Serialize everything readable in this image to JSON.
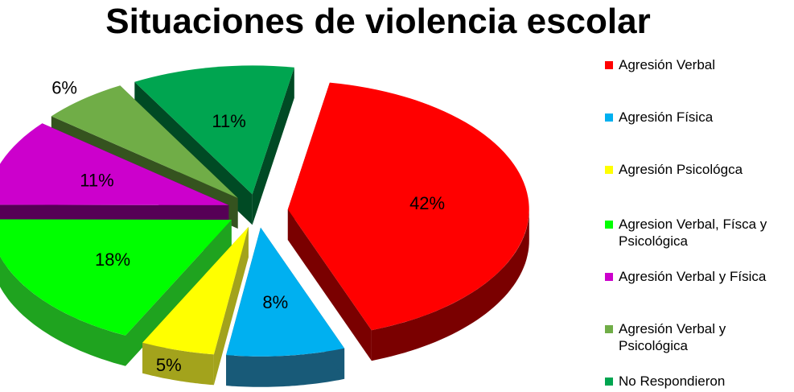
{
  "chart_data": {
    "type": "pie",
    "title": "Situaciones de violencia escolar",
    "legend_position": "right",
    "slices": [
      {
        "label": "Agresión Verbal",
        "value": 42,
        "display": "42%",
        "color": "#ff0000",
        "side": "#7a0000"
      },
      {
        "label": "Agresión Física",
        "value": 8,
        "display": "8%",
        "color": "#00b0f0",
        "side": "#185a78"
      },
      {
        "label": "Agresión Psicológca",
        "value": 5,
        "display": "5%",
        "color": "#ffff00",
        "side": "#a3a31c"
      },
      {
        "label": "Agresion Verbal, Físca y  Psicológica",
        "value": 18,
        "display": "18%",
        "color": "#00ff00",
        "side": "#1fa31f"
      },
      {
        "label": "Agresión Verbal y Física",
        "value": 11,
        "display": "11%",
        "color": "#cc00cc",
        "side": "#560056"
      },
      {
        "label": "Agresión Verbal y Psicológica",
        "value": 6,
        "display": "6%",
        "color": "#70ad47",
        "side": "#35531f"
      },
      {
        "label": "No Respondieron",
        "value": 11,
        "display": "11%",
        "color": "#00a550",
        "side": "#004a24"
      }
    ]
  }
}
